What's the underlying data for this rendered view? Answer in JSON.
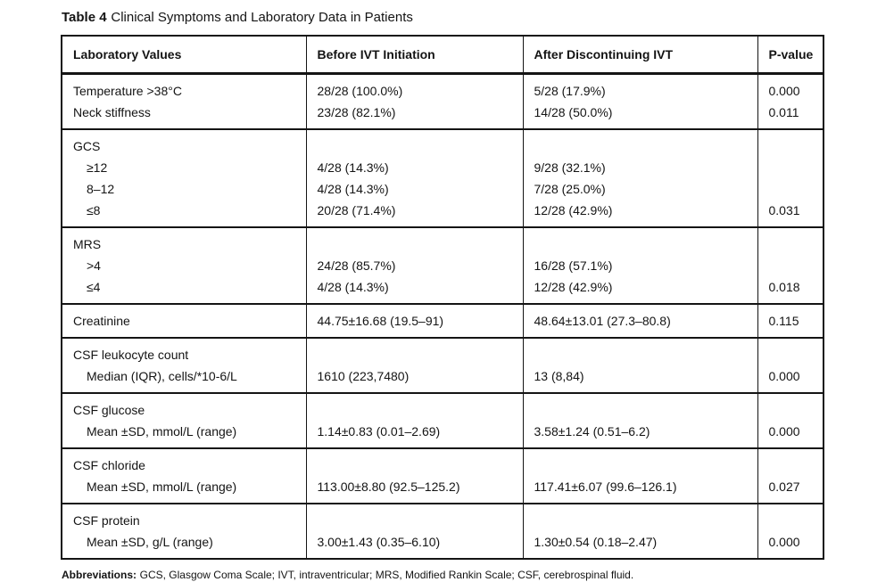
{
  "page": {
    "title_bold": "Table 4",
    "title_rest": "Clinical Symptoms and Laboratory Data in Patients",
    "footnote_bold": "Abbreviations:",
    "footnote_rest": "GCS, Glasgow Coma Scale; IVT, intraventricular; MRS, Modified Rankin Scale; CSF, cerebrospinal fluid."
  },
  "table": {
    "columns": [
      "Laboratory Values",
      "Before IVT Initiation",
      "After Discontinuing IVT",
      "P-value"
    ],
    "rows": [
      {
        "label": "Temperature >38°C",
        "indent": false,
        "before": "28/28 (100.0%)",
        "after": "5/28 (17.9%)",
        "p": "0.000",
        "group_start": true,
        "group_end": false
      },
      {
        "label": "Neck stiffness",
        "indent": false,
        "before": "23/28 (82.1%)",
        "after": "14/28 (50.0%)",
        "p": "0.011",
        "group_start": false,
        "group_end": true
      },
      {
        "label": "GCS",
        "indent": false,
        "before": "",
        "after": "",
        "p": "",
        "group_start": true,
        "group_end": false
      },
      {
        "label": "≥12",
        "indent": true,
        "before": "4/28 (14.3%)",
        "after": "9/28 (32.1%)",
        "p": "",
        "group_start": false,
        "group_end": false
      },
      {
        "label": "8–12",
        "indent": true,
        "before": "4/28 (14.3%)",
        "after": "7/28 (25.0%)",
        "p": "",
        "group_start": false,
        "group_end": false
      },
      {
        "label": "≤8",
        "indent": true,
        "before": "20/28 (71.4%)",
        "after": "12/28 (42.9%)",
        "p": "0.031",
        "group_start": false,
        "group_end": true
      },
      {
        "label": "MRS",
        "indent": false,
        "before": "",
        "after": "",
        "p": "",
        "group_start": true,
        "group_end": false
      },
      {
        "label": ">4",
        "indent": true,
        "before": "24/28 (85.7%)",
        "after": "16/28 (57.1%)",
        "p": "",
        "group_start": false,
        "group_end": false
      },
      {
        "label": "≤4",
        "indent": true,
        "before": "4/28 (14.3%)",
        "after": "12/28 (42.9%)",
        "p": "0.018",
        "group_start": false,
        "group_end": true
      },
      {
        "label": "Creatinine",
        "indent": false,
        "before": "44.75±16.68 (19.5–91)",
        "after": "48.64±13.01 (27.3–80.8)",
        "p": "0.115",
        "group_start": true,
        "group_end": true
      },
      {
        "label": "CSF leukocyte count",
        "indent": false,
        "before": "",
        "after": "",
        "p": "",
        "group_start": true,
        "group_end": false
      },
      {
        "label": "Median (IQR), cells/*10-6/L",
        "indent": true,
        "before": "1610 (223,7480)",
        "after": "13 (8,84)",
        "p": "0.000",
        "group_start": false,
        "group_end": true
      },
      {
        "label": "CSF glucose",
        "indent": false,
        "before": "",
        "after": "",
        "p": "",
        "group_start": true,
        "group_end": false
      },
      {
        "label": "Mean ±SD, mmol/L (range)",
        "indent": true,
        "before": "1.14±0.83 (0.01–2.69)",
        "after": "3.58±1.24 (0.51–6.2)",
        "p": "0.000",
        "group_start": false,
        "group_end": true
      },
      {
        "label": "CSF chloride",
        "indent": false,
        "before": "",
        "after": "",
        "p": "",
        "group_start": true,
        "group_end": false
      },
      {
        "label": "Mean ±SD, mmol/L (range)",
        "indent": true,
        "before": "113.00±8.80 (92.5–125.2)",
        "after": "117.41±6.07 (99.6–126.1)",
        "p": "0.027",
        "group_start": false,
        "group_end": true
      },
      {
        "label": "CSF protein",
        "indent": false,
        "before": "",
        "after": "",
        "p": "",
        "group_start": true,
        "group_end": false
      },
      {
        "label": "Mean ±SD, g/L (range)",
        "indent": true,
        "before": "3.00±1.43 (0.35–6.10)",
        "after": "1.30±0.54 (0.18–2.47)",
        "p": "0.000",
        "group_start": false,
        "group_end": true
      }
    ]
  }
}
